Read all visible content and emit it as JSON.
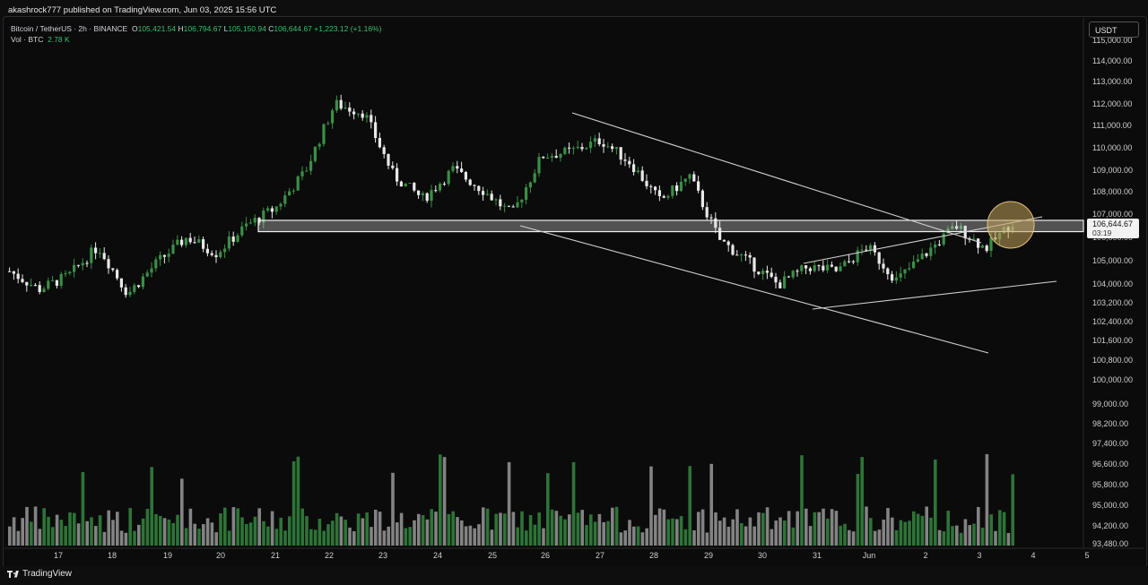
{
  "header": {
    "published": "akashrock777 published on TradingView.com, Jun 03, 2025 15:56 UTC"
  },
  "legend": {
    "symbol": "Bitcoin / TetherUS · 2h · BINANCE",
    "open_label": "O",
    "open": "105,421.54",
    "high_label": "H",
    "high": "106,794.67",
    "low_label": "L",
    "low": "105,150.94",
    "close_label": "C",
    "close": "106,644.67",
    "change": "+1,223.12 (+1.16%)",
    "vol_label": "Vol · BTC",
    "vol_value": "2.78 K"
  },
  "currency_button": "USDT",
  "price_axis": {
    "ticks": [
      "115,000.00",
      "114,000.00",
      "113,000.00",
      "112,000.00",
      "111,000.00",
      "110,000.00",
      "109,000.00",
      "108,000.00",
      "107,000.00",
      "106,000.00",
      "105,000.00",
      "104,000.00",
      "103,200.00",
      "102,400.00",
      "101,600.00",
      "100,800.00",
      "100,000.00",
      "99,000.00",
      "98,200.00",
      "97,400.00",
      "96,600.00",
      "95,800.00",
      "95,000.00",
      "94,200.00",
      "93,480.00"
    ],
    "last_price": "106,644.67",
    "countdown": "03:19"
  },
  "time_axis": {
    "ticks": [
      "17",
      "18",
      "19",
      "20",
      "21",
      "22",
      "23",
      "24",
      "25",
      "26",
      "27",
      "28",
      "29",
      "30",
      "31",
      "Jun",
      "2",
      "3",
      "4",
      "5"
    ]
  },
  "footer": {
    "logo_text": "TradingView"
  },
  "colors": {
    "up": "#3a8f45",
    "down": "#e8e8e8",
    "vol_up": "#2f7a3a",
    "vol_down": "#8a8a8a",
    "zone": "#d9d9d9",
    "circle": "#c2a25a"
  },
  "chart_data": {
    "type": "candlestick",
    "symbol": "BTCUSDT",
    "timeframe": "2h",
    "close_points": [
      {
        "x": "May 16 (late)",
        "y": 104400
      },
      {
        "x": "May 17",
        "y": 103600
      },
      {
        "x": "May 18",
        "y": 104200
      },
      {
        "x": "May 18 (late)",
        "y": 105500
      },
      {
        "x": "May 19",
        "y": 103400
      },
      {
        "x": "May 19 (late)",
        "y": 104800
      },
      {
        "x": "May 20",
        "y": 105900
      },
      {
        "x": "May 20 (late)",
        "y": 105200
      },
      {
        "x": "May 21",
        "y": 106400
      },
      {
        "x": "May 21 (late)",
        "y": 107200
      },
      {
        "x": "May 22",
        "y": 108800
      },
      {
        "x": "May 22 (late)",
        "y": 111800
      },
      {
        "x": "May 23",
        "y": 111400
      },
      {
        "x": "May 23 (late)",
        "y": 108600
      },
      {
        "x": "May 24",
        "y": 107600
      },
      {
        "x": "May 24 (late)",
        "y": 108900
      },
      {
        "x": "May 25",
        "y": 108000
      },
      {
        "x": "May 25 (late)",
        "y": 106900
      },
      {
        "x": "May 26",
        "y": 109500
      },
      {
        "x": "May 27",
        "y": 109700
      },
      {
        "x": "May 27 (late)",
        "y": 110200
      },
      {
        "x": "May 28",
        "y": 109200
      },
      {
        "x": "May 29",
        "y": 107500
      },
      {
        "x": "May 29 (late)",
        "y": 108600
      },
      {
        "x": "May 30",
        "y": 105800
      },
      {
        "x": "May 30 (late)",
        "y": 104800
      },
      {
        "x": "May 31",
        "y": 103800
      },
      {
        "x": "May 31 (late)",
        "y": 104600
      },
      {
        "x": "Jun 1",
        "y": 104400
      },
      {
        "x": "Jun 1 (late)",
        "y": 105500
      },
      {
        "x": "Jun 2",
        "y": 104000
      },
      {
        "x": "Jun 2 (late)",
        "y": 105200
      },
      {
        "x": "Jun 3",
        "y": 106400
      },
      {
        "x": "Jun 3 (late)",
        "y": 105400
      },
      {
        "x": "Jun 3 (last)",
        "y": 106644.67
      }
    ],
    "support_resistance_zone": [
      106150,
      106650
    ],
    "ylim": [
      93480,
      115000
    ]
  }
}
